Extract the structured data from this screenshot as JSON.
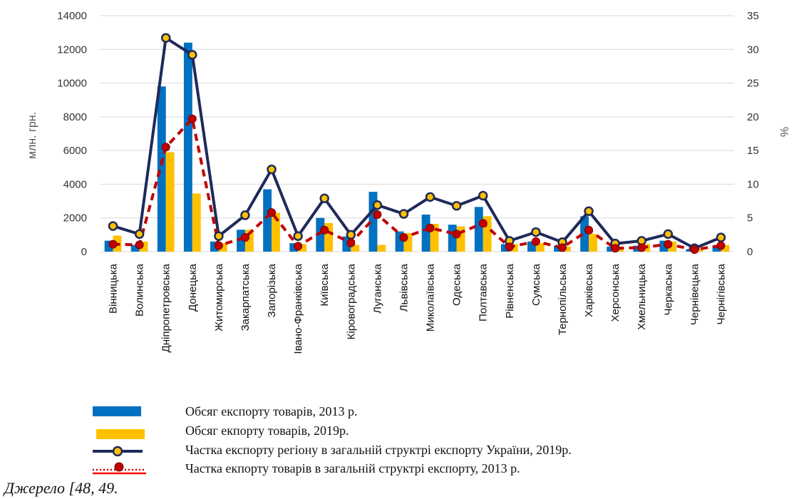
{
  "chart_data": {
    "type": "bar",
    "categories": [
      "Вінницька",
      "Волинська",
      "Дніпропетровська",
      "Донецька",
      "Житомирська",
      "Закарпатська",
      "Запорізька",
      "Івано-Франківська",
      "Київська",
      "Кіровоградська",
      "Луганська",
      "Львівська",
      "Миколаївська",
      "Одеська",
      "Полтавська",
      "Рівненська",
      "Сумська",
      "Тернопільська",
      "Харківська",
      "Херсонська",
      "Хмельницька",
      "Черкаська",
      "Чернівецька",
      "Чернігівська"
    ],
    "series": [
      {
        "name": "Обсяг експорту товарів, 2013 р.",
        "kind": "bar",
        "axis": "left",
        "color": "#0070C0",
        "values": [
          650,
          400,
          9800,
          12400,
          600,
          1300,
          3700,
          500,
          2000,
          900,
          3550,
          1200,
          2200,
          1600,
          2650,
          450,
          600,
          350,
          2100,
          300,
          350,
          650,
          150,
          350
        ]
      },
      {
        "name": "Обсяг екпорту товарів, 2019р.",
        "kind": "bar",
        "axis": "left",
        "color": "#FFC000",
        "values": [
          950,
          600,
          5900,
          3450,
          500,
          1300,
          2300,
          450,
          1700,
          400,
          400,
          1100,
          1650,
          1500,
          2100,
          450,
          500,
          300,
          1050,
          300,
          450,
          600,
          200,
          400
        ]
      },
      {
        "name": "Частка експорту регіону в загальній структрі експорту України, 2019р.",
        "kind": "line",
        "axis": "right",
        "color": "#1F2A5A",
        "values": [
          3.8,
          2.6,
          31.7,
          29.2,
          2.3,
          5.4,
          12.2,
          2.3,
          7.9,
          2.5,
          6.9,
          5.6,
          8.1,
          6.8,
          8.3,
          1.6,
          2.9,
          1.4,
          6.0,
          1.2,
          1.6,
          2.6,
          0.5,
          2.1
        ]
      },
      {
        "name": "Частка екпорту товарів в загальній структрі експорту, 2013 р.",
        "kind": "line-dashed",
        "axis": "right",
        "color": "#C00000",
        "values": [
          1.1,
          1.0,
          15.5,
          19.7,
          0.9,
          2.1,
          5.8,
          0.8,
          3.2,
          1.3,
          5.5,
          2.1,
          3.5,
          2.6,
          4.2,
          0.7,
          1.5,
          0.6,
          3.2,
          0.5,
          0.6,
          1.1,
          0.3,
          0.9
        ]
      }
    ],
    "y_left": {
      "label": "млн. грн.",
      "ylim": [
        0,
        14000
      ],
      "ticks": [
        "0",
        "2000",
        "4000",
        "6000",
        "8000",
        "10000",
        "12000",
        "14000"
      ]
    },
    "y_right": {
      "label": "%",
      "ylim": [
        0,
        35
      ],
      "ticks": [
        "0",
        "5",
        "10",
        "15",
        "20",
        "25",
        "30",
        "35"
      ]
    },
    "grid": true
  },
  "legend": [
    {
      "label": "Обсяг експорту товарів, 2013 р.",
      "icon": "blue-bar-swatch"
    },
    {
      "label": "Обсяг екпорту товарів, 2019р.",
      "icon": "yellow-bar-swatch"
    },
    {
      "label": "Частка експорту регіону в загальній структрі експорту України, 2019р.",
      "icon": "navy-line-marker"
    },
    {
      "label": "Частка екпорту товарів в загальній структрі експорту, 2013 р.",
      "icon": "red-dotted-line-marker"
    }
  ],
  "source": "Джерело [48, 49."
}
